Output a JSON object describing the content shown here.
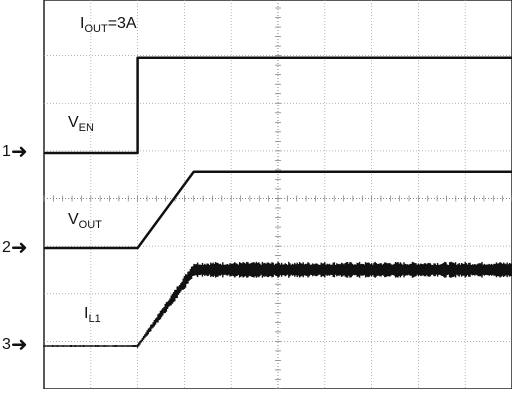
{
  "chart_data": {
    "type": "line",
    "title": "",
    "xlabel": "",
    "ylabel": "",
    "grid": true,
    "grid_divisions": {
      "x": 10,
      "y": 8
    },
    "annotation": {
      "base": "I",
      "sub": "OUT",
      "suffix": "=3A"
    },
    "series": [
      {
        "channel": "1",
        "label_base": "V",
        "label_sub": "EN",
        "level_div": [
          [
            0,
            0
          ],
          [
            2.0,
            0
          ],
          [
            2.0,
            2.0
          ],
          [
            10,
            2.0
          ]
        ]
      },
      {
        "channel": "2",
        "label_base": "V",
        "label_sub": "OUT",
        "level_div": [
          [
            0,
            0
          ],
          [
            2.0,
            0
          ],
          [
            3.2,
            1.6
          ],
          [
            10,
            1.6
          ]
        ]
      },
      {
        "channel": "3",
        "label_base": "I",
        "label_sub": "L1",
        "level_div": [
          [
            0,
            0
          ],
          [
            2.0,
            0
          ],
          [
            3.2,
            1.6
          ],
          [
            10,
            1.6
          ]
        ],
        "ripple": true
      }
    ]
  }
}
